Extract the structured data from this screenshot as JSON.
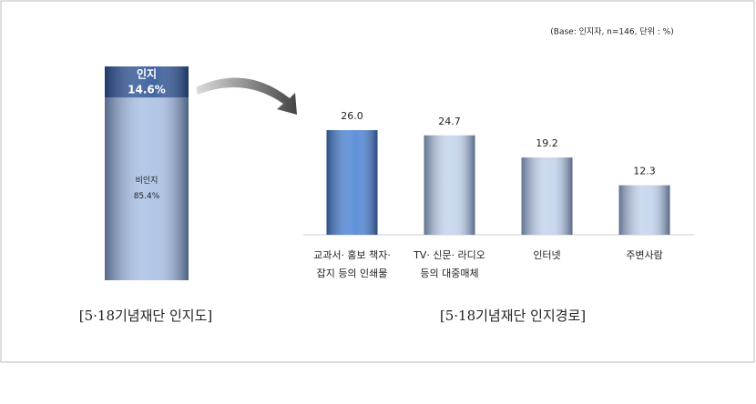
{
  "note": "(Base: 인지자, n=146, 단위 : %)",
  "chart_data": [
    {
      "type": "stacked_bar",
      "title": "[5·18기념재단 인지도]",
      "series": [
        {
          "name": "인지",
          "color": "#2f5597",
          "values": [
            14.6
          ],
          "value_labels": [
            "14.6%"
          ]
        },
        {
          "name": "비인지",
          "color": "#a9c0e4",
          "values": [
            85.4
          ],
          "value_labels": [
            "85.4%"
          ]
        }
      ]
    },
    {
      "type": "bar",
      "title": "[5·18기념재단 인지경로]",
      "categories": [
        [
          "교과서· 홍보 책자·",
          "잡지 등의 인쇄물"
        ],
        [
          "TV· 신문· 라디오",
          "등의 대중매체"
        ],
        [
          "인터넷"
        ],
        [
          "주변사람"
        ]
      ],
      "values": [
        26.0,
        24.7,
        19.2,
        12.3
      ],
      "value_labels": [
        "26.0",
        "24.7",
        "19.2",
        "12.3"
      ],
      "colors": [
        "#4f86d6",
        "#c4d4ec",
        "#c4d4ec",
        "#c4d4ec"
      ]
    }
  ]
}
